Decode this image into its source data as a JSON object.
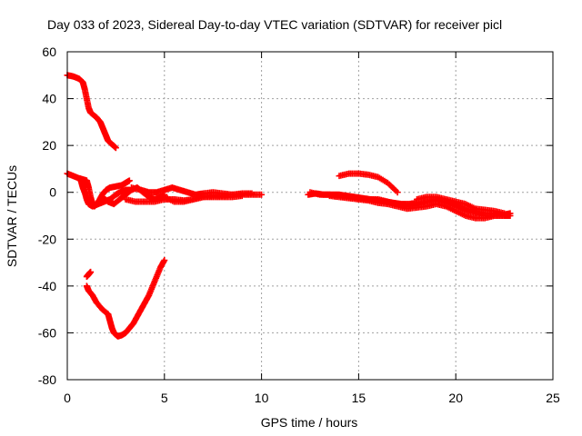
{
  "chart_data": {
    "type": "scatter",
    "title": "Day 033 of 2023, Sidereal Day-to-day VTEC variation (SDTVAR) for receiver picl",
    "xlabel": "GPS time / hours",
    "ylabel": "SDTVAR / TECUs",
    "xlim": [
      0,
      25
    ],
    "ylim": [
      -80,
      60
    ],
    "x_ticks": [
      0,
      5,
      10,
      15,
      20,
      25
    ],
    "y_ticks": [
      -80,
      -60,
      -40,
      -20,
      0,
      20,
      40,
      60
    ],
    "grid": true,
    "marker": "+",
    "color": "#ff0000",
    "series": [
      {
        "points": [
          [
            0,
            50
          ],
          [
            0.3,
            49.5
          ],
          [
            0.6,
            48.5
          ],
          [
            0.8,
            47
          ],
          [
            0.9,
            44
          ],
          [
            1.0,
            40
          ],
          [
            1.1,
            36
          ],
          [
            1.2,
            34
          ],
          [
            1.5,
            32
          ],
          [
            1.7,
            30
          ],
          [
            1.8,
            28
          ],
          [
            1.9,
            26
          ],
          [
            2.0,
            24
          ],
          [
            2.1,
            22
          ],
          [
            2.3,
            20.5
          ],
          [
            2.5,
            19
          ]
        ]
      },
      {
        "points": [
          [
            0,
            8
          ],
          [
            0.3,
            7
          ],
          [
            0.6,
            6
          ],
          [
            0.8,
            5.5
          ],
          [
            1.0,
            5
          ],
          [
            1.1,
            2
          ],
          [
            1.2,
            -2
          ],
          [
            1.3,
            -5
          ],
          [
            1.4,
            -6
          ],
          [
            1.6,
            -4
          ],
          [
            1.8,
            -1
          ],
          [
            2.0,
            1
          ],
          [
            2.2,
            2
          ],
          [
            2.5,
            2.5
          ],
          [
            2.8,
            3
          ],
          [
            3.0,
            4
          ],
          [
            3.2,
            5
          ]
        ]
      },
      {
        "points": [
          [
            0.7,
            5
          ],
          [
            0.8,
            2
          ],
          [
            0.9,
            0
          ],
          [
            1.0,
            -3
          ],
          [
            1.1,
            -5
          ],
          [
            1.3,
            -6
          ],
          [
            1.6,
            -5
          ],
          [
            1.9,
            -4
          ],
          [
            2.2,
            -3
          ],
          [
            2.5,
            -1
          ],
          [
            2.7,
            0
          ],
          [
            3.0,
            1
          ],
          [
            3.2,
            1
          ]
        ]
      },
      {
        "points": [
          [
            1.8,
            -2
          ],
          [
            2.1,
            -4
          ],
          [
            2.4,
            -5
          ],
          [
            2.7,
            -3
          ],
          [
            3.0,
            -1
          ],
          [
            3.3,
            1
          ],
          [
            3.6,
            2
          ],
          [
            3.9,
            0
          ],
          [
            4.2,
            -2
          ],
          [
            4.5,
            -3
          ],
          [
            4.8,
            -2
          ],
          [
            5.0,
            -1
          ]
        ]
      },
      {
        "points": [
          [
            3.0,
            -3
          ],
          [
            3.5,
            -4
          ],
          [
            4.0,
            -4
          ],
          [
            4.5,
            -4
          ],
          [
            5.0,
            -3
          ],
          [
            5.5,
            -3
          ],
          [
            6.0,
            -3.5
          ],
          [
            6.5,
            -3
          ],
          [
            7.0,
            -2
          ],
          [
            7.5,
            -1.5
          ],
          [
            8.0,
            -1.5
          ],
          [
            8.5,
            -1
          ],
          [
            9.0,
            -1
          ],
          [
            9.5,
            -1
          ],
          [
            10.0,
            -1
          ]
        ]
      },
      {
        "points": [
          [
            3.3,
            2
          ],
          [
            3.8,
            1
          ],
          [
            4.2,
            0
          ],
          [
            4.6,
            0
          ],
          [
            5.0,
            1
          ],
          [
            5.4,
            2
          ],
          [
            5.8,
            1
          ],
          [
            6.2,
            0
          ],
          [
            6.6,
            -1
          ],
          [
            7.0,
            -0.5
          ],
          [
            7.5,
            0
          ],
          [
            8.0,
            -0.5
          ],
          [
            8.5,
            -1
          ],
          [
            9.0,
            -0.5
          ],
          [
            9.5,
            -0.5
          ]
        ]
      },
      {
        "points": [
          [
            5.0,
            -2
          ],
          [
            5.5,
            -4
          ],
          [
            6.0,
            -4
          ],
          [
            6.5,
            -3
          ],
          [
            7.0,
            -2
          ],
          [
            7.5,
            -2
          ],
          [
            8.0,
            -2
          ],
          [
            8.5,
            -2
          ],
          [
            9.0,
            -1.5
          ]
        ]
      },
      {
        "points": [
          [
            1.0,
            -36
          ],
          [
            1.1,
            -35
          ],
          [
            1.2,
            -34
          ]
        ]
      },
      {
        "points": [
          [
            1.0,
            -40
          ],
          [
            1.1,
            -42
          ],
          [
            1.3,
            -44
          ],
          [
            1.5,
            -47
          ],
          [
            1.8,
            -50
          ],
          [
            2.1,
            -52
          ],
          [
            2.2,
            -55
          ],
          [
            2.3,
            -58
          ],
          [
            2.4,
            -60
          ],
          [
            2.6,
            -61.5
          ],
          [
            2.8,
            -61
          ],
          [
            3.0,
            -60
          ],
          [
            3.2,
            -58
          ],
          [
            3.4,
            -56
          ],
          [
            3.6,
            -53
          ],
          [
            3.8,
            -50
          ],
          [
            4.0,
            -47
          ],
          [
            4.2,
            -44
          ],
          [
            4.4,
            -40
          ],
          [
            4.6,
            -36
          ],
          [
            4.8,
            -32
          ],
          [
            5.0,
            -29
          ]
        ]
      },
      {
        "points": [
          [
            12.4,
            -1
          ],
          [
            12.8,
            -0.5
          ],
          [
            13.2,
            -1
          ],
          [
            13.6,
            -1
          ],
          [
            14.0,
            -1
          ],
          [
            14.4,
            -1.5
          ],
          [
            14.8,
            -2
          ],
          [
            15.2,
            -2.5
          ],
          [
            15.6,
            -3
          ],
          [
            16.0,
            -3.5
          ],
          [
            16.4,
            -4
          ],
          [
            16.8,
            -4.5
          ],
          [
            17.2,
            -5
          ],
          [
            17.6,
            -5
          ],
          [
            18.0,
            -4.5
          ],
          [
            18.5,
            -4
          ],
          [
            19.0,
            -3.5
          ],
          [
            19.5,
            -4
          ],
          [
            20.0,
            -5
          ],
          [
            20.5,
            -7
          ],
          [
            21.0,
            -8
          ],
          [
            21.5,
            -9
          ],
          [
            22.0,
            -9
          ],
          [
            22.5,
            -9.5
          ],
          [
            22.8,
            -9
          ]
        ]
      },
      {
        "points": [
          [
            12.5,
            0
          ],
          [
            13.0,
            -1
          ],
          [
            13.5,
            -1
          ],
          [
            14.0,
            -1.5
          ],
          [
            14.5,
            -2
          ],
          [
            15.0,
            -2.5
          ],
          [
            15.5,
            -3
          ],
          [
            16.0,
            -3
          ],
          [
            16.5,
            -4
          ],
          [
            17.0,
            -5
          ],
          [
            17.5,
            -6
          ],
          [
            18.0,
            -5.5
          ],
          [
            18.5,
            -4
          ],
          [
            19.0,
            -3
          ],
          [
            19.5,
            -4.5
          ],
          [
            20.0,
            -6
          ],
          [
            20.5,
            -8
          ],
          [
            21.0,
            -9
          ],
          [
            21.5,
            -10
          ],
          [
            22.0,
            -10
          ],
          [
            22.5,
            -10
          ],
          [
            22.8,
            -10
          ]
        ]
      },
      {
        "points": [
          [
            13.5,
            -1.5
          ],
          [
            14.0,
            -2
          ],
          [
            14.5,
            -2.5
          ],
          [
            15.0,
            -3
          ],
          [
            15.5,
            -3.5
          ],
          [
            16.0,
            -4.5
          ],
          [
            16.5,
            -5
          ],
          [
            17.0,
            -6
          ],
          [
            17.5,
            -7
          ],
          [
            18.0,
            -6.5
          ],
          [
            18.5,
            -6
          ],
          [
            19.0,
            -5
          ],
          [
            19.5,
            -6
          ],
          [
            20.0,
            -8
          ],
          [
            20.5,
            -10
          ],
          [
            21.0,
            -11
          ],
          [
            21.5,
            -11
          ],
          [
            22.0,
            -10
          ],
          [
            22.5,
            -10
          ]
        ]
      },
      {
        "points": [
          [
            18.0,
            -3
          ],
          [
            18.5,
            -2
          ],
          [
            19.0,
            -2
          ],
          [
            19.5,
            -3
          ],
          [
            20.0,
            -4
          ],
          [
            20.5,
            -5
          ],
          [
            21.0,
            -7
          ],
          [
            21.5,
            -7.5
          ],
          [
            22.0,
            -8
          ],
          [
            22.5,
            -9
          ]
        ]
      },
      {
        "points": [
          [
            14.0,
            7
          ],
          [
            14.5,
            8
          ],
          [
            15.0,
            8
          ],
          [
            15.5,
            7.5
          ],
          [
            16.0,
            6.5
          ],
          [
            16.5,
            4
          ],
          [
            17.0,
            0
          ]
        ]
      }
    ]
  }
}
